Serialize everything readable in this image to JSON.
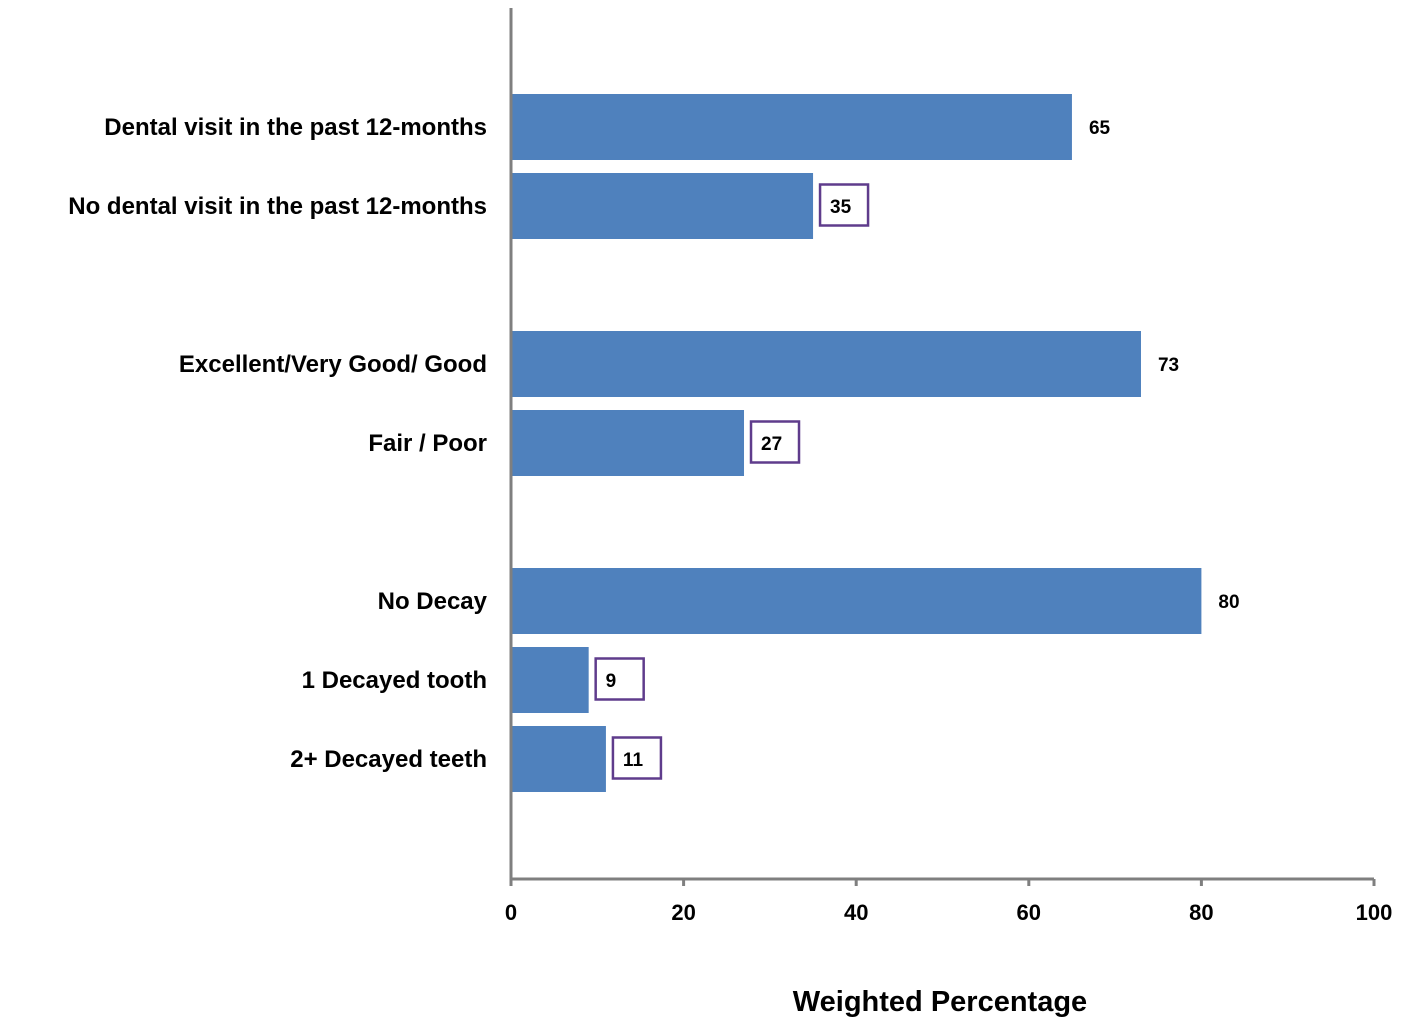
{
  "chart_data": {
    "type": "bar",
    "orientation": "horizontal",
    "categories": [
      "Dental visit in the past 12-months",
      "No dental visit in the past 12-months",
      "Excellent/Very Good/ Good",
      "Fair / Poor",
      "No Decay",
      "1 Decayed tooth",
      "2+ Decayed teeth"
    ],
    "values": [
      65,
      35,
      73,
      27,
      80,
      9,
      11
    ],
    "value_labels": [
      "65",
      "35",
      "73",
      "27",
      "80",
      "9",
      "11"
    ],
    "boxed_labels": [
      false,
      true,
      false,
      true,
      false,
      true,
      true
    ],
    "groups": [
      {
        "categories": [
          0,
          1
        ]
      },
      {
        "categories": [
          2,
          3
        ]
      },
      {
        "categories": [
          4,
          5,
          6
        ]
      }
    ],
    "title": "",
    "xlabel": "Weighted Percentage",
    "ylabel": "",
    "xlim": [
      0,
      100
    ],
    "xticks": [
      0,
      20,
      40,
      60,
      80,
      100
    ],
    "grid": false,
    "legend": "none",
    "colors": {
      "bar": "#4F81BD",
      "axis": "#7F7F7F",
      "label_box_border": "#5F3C8C",
      "text": "#000000"
    }
  }
}
